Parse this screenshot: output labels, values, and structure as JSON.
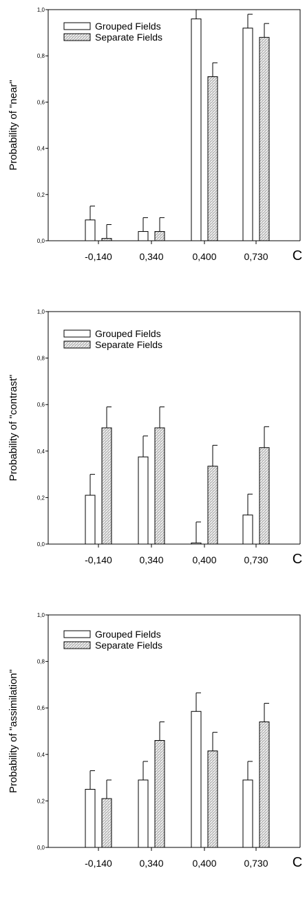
{
  "legend": {
    "grouped": "Grouped Fields",
    "separate": "Separate Fields"
  },
  "x_variable": "C",
  "colors": {
    "grouped_fill": "#ffffff",
    "separate_fill": "#e6e6e6",
    "stroke": "#000000"
  },
  "chart_data": [
    {
      "type": "bar",
      "ylabel": "Probability of \"near\"",
      "xlabel": "C",
      "categories": [
        "-0,140",
        "0,340",
        "0,400",
        "0,730"
      ],
      "ylim": [
        0,
        1
      ],
      "yticks": [
        "0,0",
        "0,2",
        "0,4",
        "0,6",
        "0,8",
        "1,0"
      ],
      "legend_position": "top-left",
      "error_bars": "upper",
      "series": [
        {
          "name": "Grouped Fields",
          "values": [
            0.09,
            0.04,
            0.96,
            0.92
          ],
          "errors": [
            0.06,
            0.06,
            0.06,
            0.06
          ]
        },
        {
          "name": "Separate Fields",
          "values": [
            0.01,
            0.04,
            0.71,
            0.88
          ],
          "errors": [
            0.06,
            0.06,
            0.06,
            0.06
          ]
        }
      ]
    },
    {
      "type": "bar",
      "ylabel": "Probability of \"contrast\"",
      "xlabel": "C",
      "categories": [
        "-0,140",
        "0,340",
        "0,400",
        "0,730"
      ],
      "ylim": [
        0,
        1
      ],
      "yticks": [
        "0,0",
        "0,2",
        "0,4",
        "0,6",
        "0,8",
        "1,0"
      ],
      "legend_position": "top-left",
      "error_bars": "upper",
      "series": [
        {
          "name": "Grouped Fields",
          "values": [
            0.21,
            0.375,
            0.005,
            0.125
          ],
          "errors": [
            0.09,
            0.09,
            0.09,
            0.09
          ]
        },
        {
          "name": "Separate Fields",
          "values": [
            0.5,
            0.5,
            0.335,
            0.415
          ],
          "errors": [
            0.09,
            0.09,
            0.09,
            0.09
          ]
        }
      ]
    },
    {
      "type": "bar",
      "ylabel": "Probability of \"assimilation\"",
      "xlabel": "C",
      "categories": [
        "-0,140",
        "0,340",
        "0,400",
        "0,730"
      ],
      "ylim": [
        0,
        1
      ],
      "yticks": [
        "0,0",
        "0,2",
        "0,4",
        "0,6",
        "0,8",
        "1,0"
      ],
      "legend_position": "top-left",
      "error_bars": "upper",
      "series": [
        {
          "name": "Grouped Fields",
          "values": [
            0.25,
            0.29,
            0.585,
            0.29
          ],
          "errors": [
            0.08,
            0.08,
            0.08,
            0.08
          ]
        },
        {
          "name": "Separate Fields",
          "values": [
            0.21,
            0.46,
            0.415,
            0.54
          ],
          "errors": [
            0.08,
            0.08,
            0.08,
            0.08
          ]
        }
      ]
    }
  ]
}
